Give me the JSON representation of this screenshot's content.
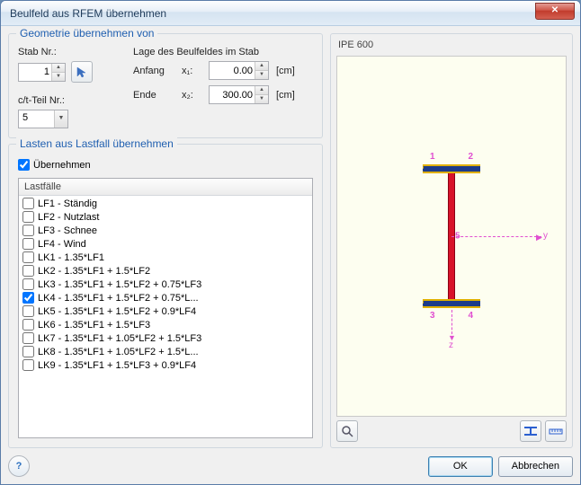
{
  "window": {
    "title": "Beulfeld aus RFEM übernehmen",
    "close_glyph": "✕"
  },
  "geom": {
    "group_title": "Geometrie übernehmen von",
    "stab_label": "Stab Nr.:",
    "stab_value": "1",
    "lage_label": "Lage des Beulfeldes im Stab",
    "anfang_label": "Anfang",
    "x1_label": "x₁:",
    "x1_value": "0.00",
    "ende_label": "Ende",
    "x2_label": "x₂:",
    "x2_value": "300.00",
    "unit": "[cm]",
    "ct_label": "c/t-Teil Nr.:",
    "ct_value": "5"
  },
  "loads": {
    "group_title": "Lasten aus Lastfall übernehmen",
    "take_label": "Übernehmen",
    "take_checked": true,
    "list_header": "Lastfälle",
    "items": [
      {
        "label": "LF1 - Ständig",
        "checked": false
      },
      {
        "label": "LF2 - Nutzlast",
        "checked": false
      },
      {
        "label": "LF3 - Schnee",
        "checked": false
      },
      {
        "label": "LF4 - Wind",
        "checked": false
      },
      {
        "label": "LK1 - 1.35*LF1",
        "checked": false
      },
      {
        "label": "LK2 - 1.35*LF1 + 1.5*LF2",
        "checked": false
      },
      {
        "label": "LK3 - 1.35*LF1 + 1.5*LF2 + 0.75*LF3",
        "checked": false
      },
      {
        "label": "LK4 - 1.35*LF1 + 1.5*LF2 + 0.75*L...",
        "checked": true
      },
      {
        "label": "LK5 - 1.35*LF1 + 1.5*LF2 + 0.9*LF4",
        "checked": false
      },
      {
        "label": "LK6 - 1.35*LF1 + 1.5*LF3",
        "checked": false
      },
      {
        "label": "LK7 - 1.35*LF1 + 1.05*LF2 + 1.5*LF3",
        "checked": false
      },
      {
        "label": "LK8 - 1.35*LF1 + 1.05*LF2 + 1.5*L...",
        "checked": false
      },
      {
        "label": "LK9 - 1.35*LF1 + 1.5*LF3 + 0.9*LF4",
        "checked": false
      }
    ]
  },
  "preview": {
    "title": "IPE 600",
    "markers": {
      "tl": "1",
      "tr": "2",
      "bl": "3",
      "br": "4",
      "c": "5"
    },
    "axis_y": "y",
    "axis_z": "z",
    "colors": {
      "bg": "#fdfef0",
      "flange": "#1c3b8a",
      "web": "#d8132a",
      "trim": "#e0b000",
      "axis": "#e04fd0"
    }
  },
  "footer": {
    "ok": "OK",
    "cancel": "Abbrechen"
  }
}
